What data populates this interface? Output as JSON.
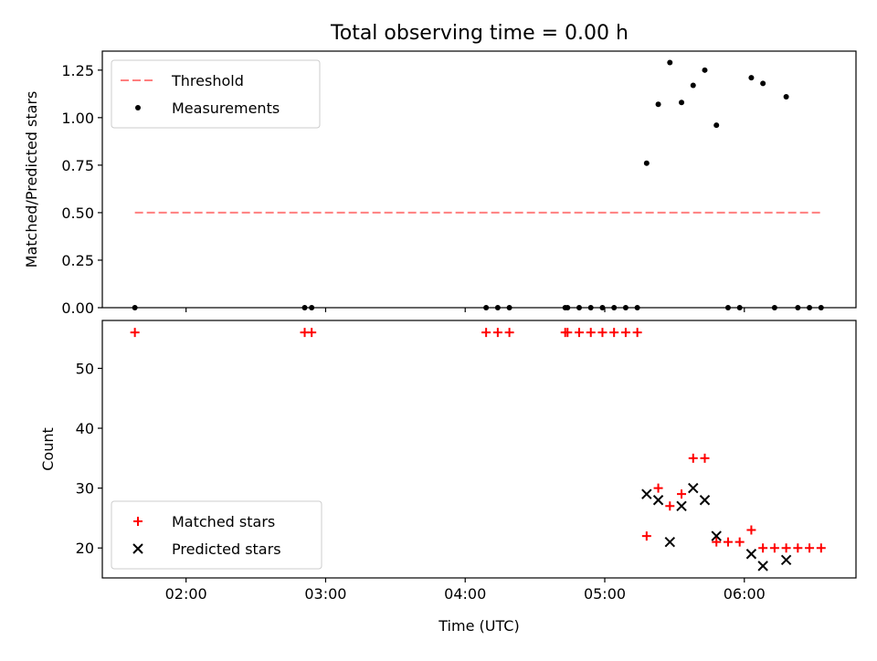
{
  "figure": {
    "title": "Total observing time = 0.00 h"
  },
  "chart_data": [
    {
      "type": "scatter",
      "title": "Total observing time = 0.00 h",
      "xlabel": "",
      "ylabel": "Matched/Predicted stars",
      "xlim": [
        "01:24",
        "06:48"
      ],
      "ylim": [
        0,
        1.35
      ],
      "yticks": [
        0.0,
        0.25,
        0.5,
        0.75,
        1.0,
        1.25
      ],
      "ytick_labels": [
        "0.00",
        "0.25",
        "0.50",
        "0.75",
        "1.00",
        "1.25"
      ],
      "xticks": [
        "02:00",
        "03:00",
        "04:00",
        "05:00",
        "06:00"
      ],
      "grid": false,
      "legend_position": "top-left",
      "threshold": {
        "name": "Threshold",
        "color": "#ff7f7f",
        "style": "dashed",
        "value": 0.5,
        "x_start": "01:38",
        "x_end": "06:33"
      },
      "series": [
        {
          "name": "Measurements",
          "color": "#000000",
          "marker": "dot",
          "x": [
            "01:38",
            "02:51",
            "02:54",
            "04:09",
            "04:14",
            "04:19",
            "04:43",
            "04:44",
            "04:49",
            "04:54",
            "04:59",
            "05:04",
            "05:09",
            "05:14",
            "05:18",
            "05:23",
            "05:28",
            "05:33",
            "05:38",
            "05:43",
            "05:48",
            "05:53",
            "05:58",
            "06:03",
            "06:08",
            "06:13",
            "06:18",
            "06:23",
            "06:28",
            "06:33"
          ],
          "y": [
            0,
            0,
            0,
            0,
            0,
            0,
            0,
            0,
            0,
            0,
            0,
            0,
            0,
            0,
            0.76,
            1.07,
            1.29,
            1.08,
            1.17,
            1.25,
            0.96,
            0,
            0,
            1.21,
            1.18,
            0,
            1.11,
            0,
            0,
            0
          ]
        }
      ]
    },
    {
      "type": "scatter",
      "title": "",
      "xlabel": "Time (UTC)",
      "ylabel": "Count",
      "xlim": [
        "01:24",
        "06:48"
      ],
      "ylim": [
        15,
        58
      ],
      "yticks": [
        20,
        30,
        40,
        50
      ],
      "ytick_labels": [
        "20",
        "30",
        "40",
        "50"
      ],
      "xticks": [
        "02:00",
        "03:00",
        "04:00",
        "05:00",
        "06:00"
      ],
      "grid": false,
      "legend_position": "bottom-left",
      "series": [
        {
          "name": "Matched stars",
          "color": "#ff0000",
          "marker": "plus",
          "x": [
            "01:38",
            "02:51",
            "02:54",
            "04:09",
            "04:14",
            "04:19",
            "04:43",
            "04:44",
            "04:49",
            "04:54",
            "04:59",
            "05:04",
            "05:09",
            "05:14",
            "05:18",
            "05:23",
            "05:28",
            "05:33",
            "05:38",
            "05:43",
            "05:48",
            "05:53",
            "05:58",
            "06:03",
            "06:08",
            "06:13",
            "06:18",
            "06:23",
            "06:28",
            "06:33"
          ],
          "y": [
            56,
            56,
            56,
            56,
            56,
            56,
            56,
            56,
            56,
            56,
            56,
            56,
            56,
            56,
            22,
            30,
            27,
            29,
            35,
            35,
            21,
            21,
            21,
            23,
            20,
            20,
            20,
            20,
            20,
            20
          ]
        },
        {
          "name": "Predicted stars",
          "color": "#000000",
          "marker": "x",
          "x": [
            "05:18",
            "05:23",
            "05:28",
            "05:33",
            "05:38",
            "05:43",
            "05:48",
            "06:03",
            "06:08",
            "06:18"
          ],
          "y": [
            29,
            28,
            21,
            27,
            30,
            28,
            22,
            19,
            17,
            18
          ]
        }
      ]
    }
  ]
}
